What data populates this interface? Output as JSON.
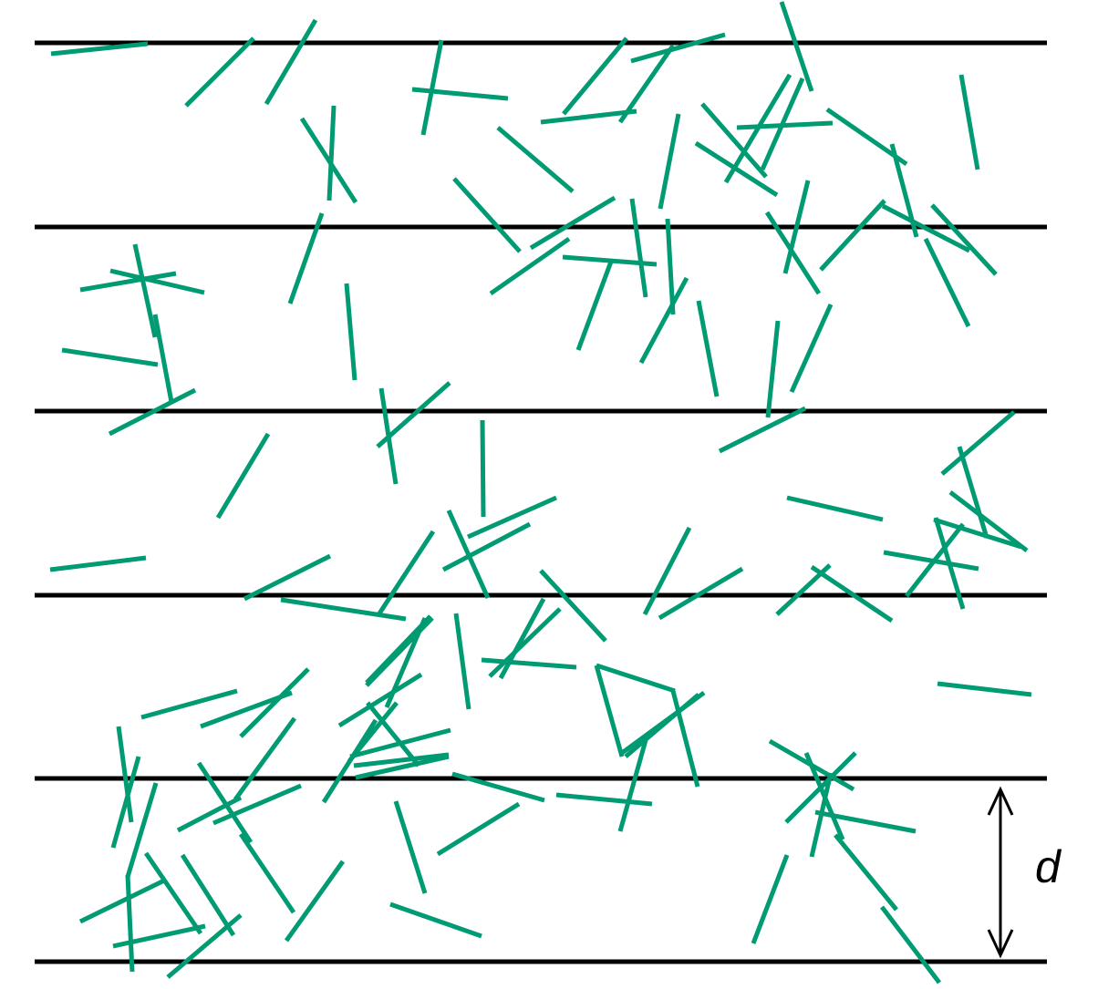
{
  "figure": {
    "type": "buffon-needle-diagram",
    "line_color": "#000000",
    "needle_color": "#009b72",
    "parallel_line_count": 6,
    "needle_count": 136,
    "spacing_label": "d"
  }
}
